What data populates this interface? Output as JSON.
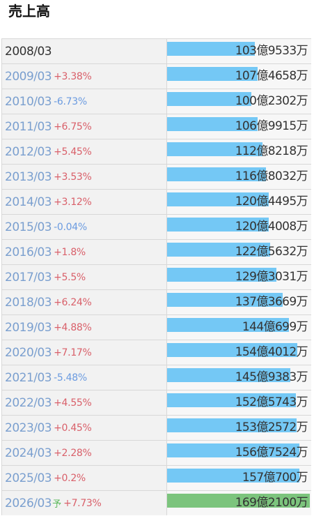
{
  "title": "売上高",
  "chart_data": {
    "type": "bar",
    "title": "売上高",
    "orientation": "horizontal",
    "forecast_marker": "予",
    "rows": [
      {
        "label": "2008/03",
        "change": "",
        "value_text": "103億9533万",
        "value": 10395333
      },
      {
        "label": "2009/03",
        "change": "+3.38%",
        "value_text": "107億4658万",
        "value": 10746580
      },
      {
        "label": "2010/03",
        "change": "-6.73%",
        "value_text": "100億2302万",
        "value": 10023020
      },
      {
        "label": "2011/03",
        "change": "+6.75%",
        "value_text": "106億9915万",
        "value": 10699150
      },
      {
        "label": "2012/03",
        "change": "+5.45%",
        "value_text": "112億8218万",
        "value": 11282180
      },
      {
        "label": "2013/03",
        "change": "+3.53%",
        "value_text": "116億8032万",
        "value": 11680320
      },
      {
        "label": "2014/03",
        "change": "+3.12%",
        "value_text": "120億4495万",
        "value": 12044950
      },
      {
        "label": "2015/03",
        "change": "-0.04%",
        "value_text": "120億4008万",
        "value": 12040080
      },
      {
        "label": "2016/03",
        "change": "+1.8%",
        "value_text": "122億5632万",
        "value": 12256320
      },
      {
        "label": "2017/03",
        "change": "+5.5%",
        "value_text": "129億3031万",
        "value": 12930310
      },
      {
        "label": "2018/03",
        "change": "+6.24%",
        "value_text": "137億3669万",
        "value": 13736690
      },
      {
        "label": "2019/03",
        "change": "+4.88%",
        "value_text": "144億699万",
        "value": 14406990
      },
      {
        "label": "2020/03",
        "change": "+7.17%",
        "value_text": "154億4012万",
        "value": 15440120
      },
      {
        "label": "2021/03",
        "change": "-5.48%",
        "value_text": "145億9383万",
        "value": 14593830
      },
      {
        "label": "2022/03",
        "change": "+4.55%",
        "value_text": "152億5743万",
        "value": 15257430
      },
      {
        "label": "2023/03",
        "change": "+0.45%",
        "value_text": "153億2572万",
        "value": 15325720
      },
      {
        "label": "2024/03",
        "change": "+2.28%",
        "value_text": "156億7524万",
        "value": 15675240
      },
      {
        "label": "2025/03",
        "change": "+0.2%",
        "value_text": "157億700万",
        "value": 15707000
      },
      {
        "label": "2026/03",
        "change": "+7.73%",
        "value_text": "169億2100万",
        "value": 16921000,
        "forecast": true
      }
    ],
    "colors": {
      "bar": "#74c8f5",
      "forecast_bar": "#7cc47d",
      "increase": "#d9606a",
      "decrease": "#6b9be0"
    }
  }
}
